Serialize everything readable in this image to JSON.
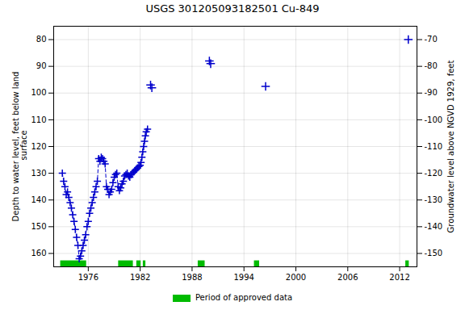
{
  "chart_data": {
    "type": "line",
    "title": "USGS 301205093182501 Cu-849",
    "ylabel": "Depth to water level, feet below land\n surface",
    "y2label": "Groundwater level above NGVD 1929, feet",
    "xlim": [
      1972,
      2014
    ],
    "xticks": [
      1976,
      1982,
      1988,
      1994,
      2000,
      2006,
      2012
    ],
    "ylim": [
      165,
      75
    ],
    "yticks": [
      80,
      90,
      100,
      110,
      120,
      130,
      140,
      150,
      160
    ],
    "y2lim": [
      -155,
      -65
    ],
    "y2ticks": [
      -70,
      -80,
      -90,
      -100,
      -110,
      -120,
      -130,
      -140,
      -150
    ],
    "grid": true,
    "legend": "bottom",
    "series": [
      {
        "type": "line",
        "line_style": "dashed",
        "marker": "plus",
        "color": "#0000cc",
        "x": [
          1973.0,
          1973.15,
          1973.3,
          1973.45,
          1973.6,
          1973.75,
          1973.9,
          1974.05,
          1974.2,
          1974.35,
          1974.5,
          1974.65,
          1974.8,
          1974.95,
          1975.1,
          1975.25,
          1975.4,
          1975.55,
          1975.7,
          1975.85,
          1976.0,
          1976.15,
          1976.3,
          1976.45,
          1976.6,
          1976.75,
          1976.9,
          1977.05,
          1977.2,
          1977.35,
          1977.5,
          1977.65,
          1977.8,
          1977.95,
          1978.1,
          1978.25,
          1978.4,
          1978.55,
          1978.7,
          1978.85,
          1979.0,
          1979.15,
          1979.3,
          1979.45,
          1979.6,
          1979.75,
          1979.9,
          1980.05,
          1980.2,
          1980.35,
          1980.5,
          1980.65,
          1980.8,
          1980.95,
          1981.1,
          1981.25,
          1981.4,
          1981.55,
          1981.7,
          1981.85,
          1982.0,
          1982.1,
          1982.2,
          1982.3,
          1982.4,
          1982.5,
          1982.6,
          1982.7,
          1982.85
        ],
        "values": [
          130.0,
          133.0,
          135.0,
          138.0,
          137.0,
          139.0,
          141.0,
          143.0,
          145.5,
          148.0,
          151.0,
          154.0,
          157.0,
          162.0,
          161.0,
          159.0,
          157.0,
          155.0,
          153.0,
          150.0,
          148.0,
          145.0,
          143.0,
          141.0,
          139.0,
          137.0,
          135.0,
          133.0,
          124.5,
          125.5,
          124.0,
          124.5,
          125.5,
          126.5,
          135.0,
          136.0,
          138.0,
          137.0,
          136.0,
          133.5,
          131.5,
          130.5,
          130.0,
          135.0,
          136.5,
          135.5,
          134.0,
          133.0,
          131.0,
          130.5,
          130.0,
          131.0,
          131.5,
          130.5,
          130.0,
          129.5,
          129.0,
          128.5,
          128.0,
          127.5,
          127.0,
          126.0,
          124.0,
          122.0,
          120.0,
          118.0,
          116.0,
          114.5,
          113.5
        ]
      },
      {
        "type": "scatter",
        "marker": "plus",
        "color": "#0000cc",
        "x": [
          1983.2,
          1983.35,
          1990.0,
          1990.15,
          1996.5,
          2013.0
        ],
        "values": [
          97.0,
          98.0,
          88.0,
          89.0,
          97.5,
          80.0
        ]
      }
    ],
    "spans": {
      "name": "Period of approved data",
      "color": "#00bb00",
      "ranges": [
        [
          1972.8,
          1975.8
        ],
        [
          1979.5,
          1981.2
        ],
        [
          1981.6,
          1982.1
        ],
        [
          1982.35,
          1982.65
        ],
        [
          1988.7,
          1989.5
        ],
        [
          1995.2,
          1995.8
        ],
        [
          2012.7,
          2013.1
        ]
      ]
    }
  }
}
